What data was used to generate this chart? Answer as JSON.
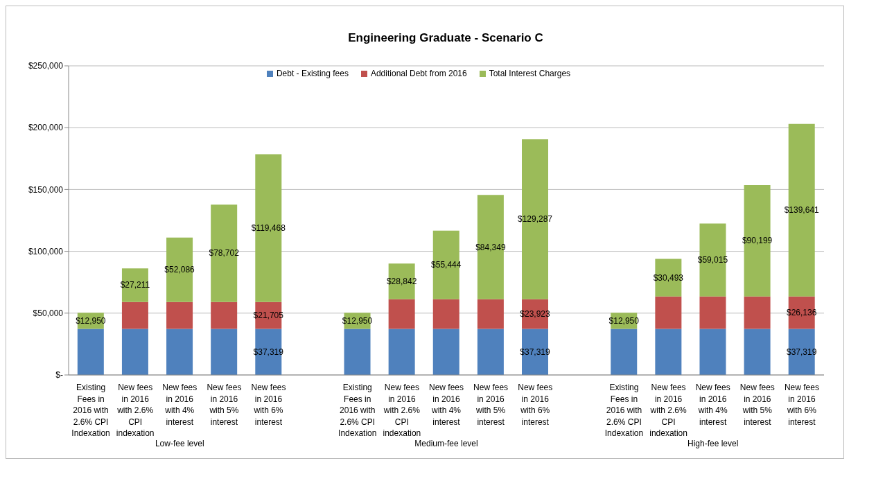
{
  "chart_data": {
    "type": "bar",
    "title": "Engineering Graduate - Scenario C",
    "stacked": true,
    "categories": [
      "Existing Fees in 2016 with 2.6% CPI Indexation",
      "New fees in 2016 with 2.6% CPI indexation",
      "New fees in 2016 with 4% interest",
      "New fees in 2016 with 5% interest",
      "New fees in 2016 with 6% interest",
      null,
      "Existing Fees in 2016 with 2.6% CPI Indexation",
      "New fees in 2016 with 2.6% CPI indexation",
      "New fees in 2016 with 4% interest",
      "New fees in 2016 with 5% interest",
      "New fees in 2016 with 6% interest",
      null,
      "Existing Fees in 2016 with 2.6% CPI Indexation",
      "New fees in 2016 with 2.6% CPI indexation",
      "New fees in 2016 with 4% interest",
      "New fees in 2016 with 5% interest",
      "New fees in 2016 with 6% interest"
    ],
    "series": [
      {
        "name": "Debt - Existing fees",
        "color": "#4f81bd",
        "values": [
          37319,
          37319,
          37319,
          37319,
          37319,
          null,
          37319,
          37319,
          37319,
          37319,
          37319,
          null,
          37319,
          37319,
          37319,
          37319,
          37319
        ],
        "value_labels": [
          null,
          null,
          null,
          null,
          "$37,319",
          null,
          null,
          null,
          null,
          null,
          "$37,319",
          null,
          null,
          null,
          null,
          null,
          "$37,319"
        ]
      },
      {
        "name": "Additional Debt from 2016",
        "color": "#c0504d",
        "values": [
          null,
          21705,
          21705,
          21705,
          21705,
          null,
          null,
          23923,
          23923,
          23923,
          23923,
          null,
          null,
          26136,
          26136,
          26136,
          26136
        ],
        "value_labels": [
          null,
          null,
          null,
          null,
          "$21,705",
          null,
          null,
          null,
          null,
          null,
          "$23,923",
          null,
          null,
          null,
          null,
          null,
          "$26,136"
        ]
      },
      {
        "name": "Total Interest Charges",
        "color": "#9bbb59",
        "values": [
          12950,
          27211,
          52086,
          78702,
          119468,
          null,
          12950,
          28842,
          55444,
          84349,
          129287,
          null,
          12950,
          30493,
          59015,
          90199,
          139641
        ],
        "value_labels": [
          "$12,950",
          "$27,211",
          "$52,086",
          "$78,702",
          "$119,468",
          null,
          "$12,950",
          "$28,842",
          "$55,444",
          "$84,349",
          "$129,287",
          null,
          "$12,950",
          "$30,493",
          "$59,015",
          "$90,199",
          "$139,641"
        ]
      }
    ],
    "ylim": [
      0,
      250000
    ],
    "yticks": [
      {
        "value": 0,
        "label": "$-"
      },
      {
        "value": 50000,
        "label": "$50,000"
      },
      {
        "value": 100000,
        "label": "$100,000"
      },
      {
        "value": 150000,
        "label": "$150,000"
      },
      {
        "value": 200000,
        "label": "$200,000"
      },
      {
        "value": 250000,
        "label": "$250,000"
      }
    ],
    "grid": "y",
    "legend": "top",
    "annotations": [
      "Low-fee level",
      "Medium-fee level",
      "High-fee level"
    ]
  }
}
